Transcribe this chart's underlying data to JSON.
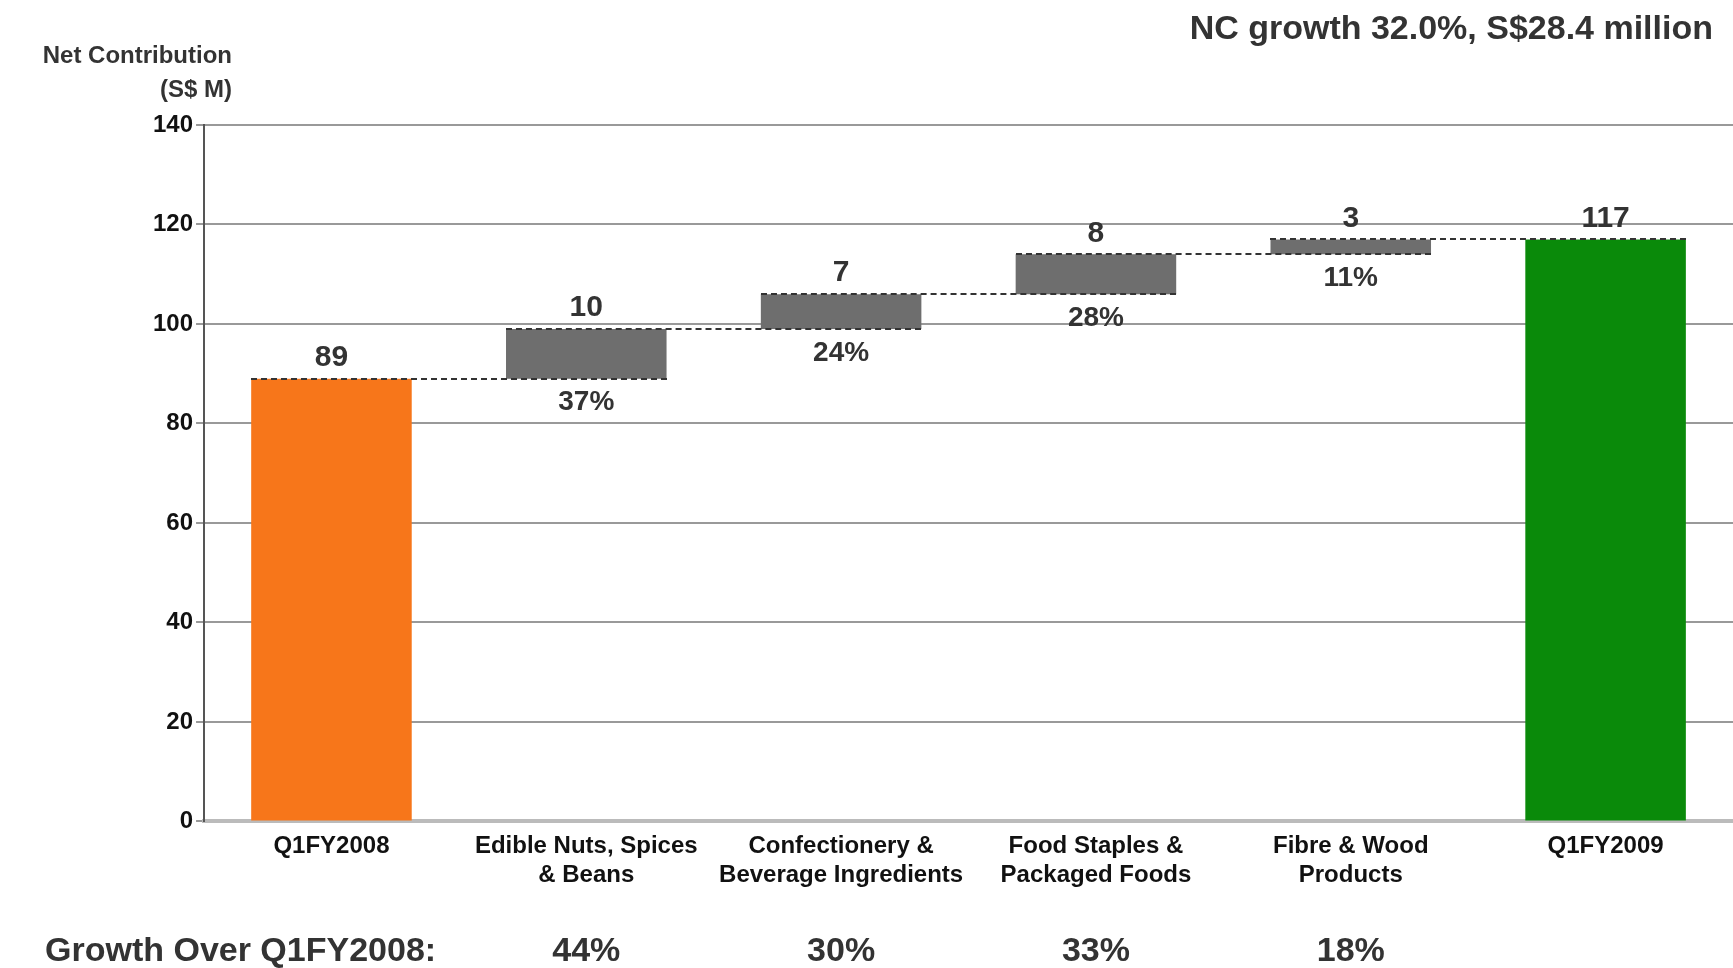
{
  "chart_data": {
    "type": "bar",
    "title": "NC growth 32.0%, S$28.4 million",
    "ylabel": "Net Contribution (S$ M)",
    "categories": [
      "Q1FY2008",
      "Edible Nuts, Spices & Beans",
      "Confectionery & Beverage Ingredients",
      "Food Staples & Packaged Foods",
      "Fibre & Wood Products",
      "Q1FY2009"
    ],
    "values": [
      89,
      10,
      7,
      8,
      3,
      117
    ],
    "base": [
      0,
      89,
      99,
      106,
      114,
      0
    ],
    "colors": [
      "#f7761a",
      "#6e6e6e",
      "#6e6e6e",
      "#6e6e6e",
      "#6e6e6e",
      "#0a8a0a"
    ],
    "ylim": [
      0,
      140
    ],
    "yticks": [
      0,
      20,
      40,
      60,
      80,
      100,
      120,
      140
    ],
    "grid": "y",
    "legend": false,
    "data_labels": true,
    "annotations": [
      {
        "text": "37%",
        "x": "Edible Nuts, Spices & Beans",
        "y": 89
      },
      {
        "text": "24%",
        "x": "Confectionery & Beverage Ingredients",
        "y": 99
      },
      {
        "text": "28%",
        "x": "Food Staples & Packaged Foods",
        "y": 106
      },
      {
        "text": "11%",
        "x": "Fibre & Wood Products",
        "y": 114
      },
      "Growth Over Q1FY2008:",
      "44%",
      "30%",
      "33%",
      "18%"
    ]
  }
}
